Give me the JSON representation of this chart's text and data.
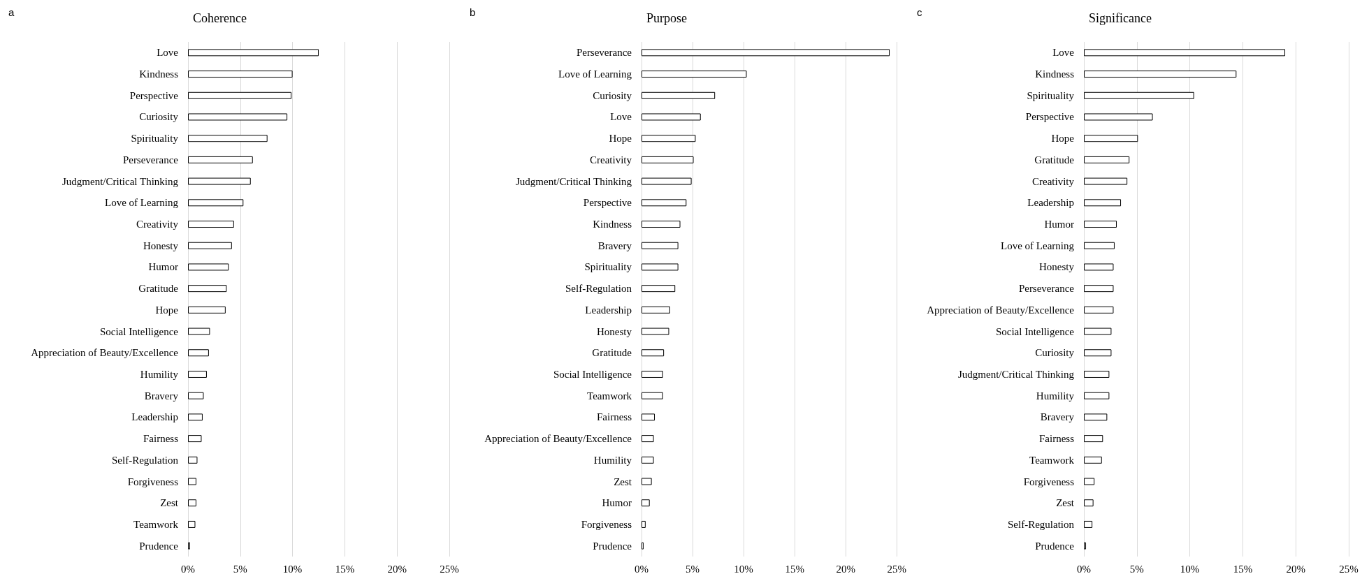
{
  "chart_data": [
    {
      "type": "bar",
      "orientation": "horizontal",
      "title": "Coherence",
      "annotations": [
        "a"
      ],
      "grid": "x",
      "color": "#ffffff",
      "categories": [
        "Love",
        "Kindness",
        "Perspective",
        "Curiosity",
        "Spirituality",
        "Perseverance",
        "Judgment/Critical Thinking",
        "Love of Learning",
        "Creativity",
        "Honesty",
        "Humor",
        "Gratitude",
        "Hope",
        "Social Intelligence",
        "Appreciation of Beauty/Excellence",
        "Humility",
        "Bravery",
        "Leadership",
        "Fairness",
        "Self-Regulation",
        "Forgiveness",
        "Zest",
        "Teamwork",
        "Prudence"
      ],
      "values": [
        12.5,
        10.0,
        9.9,
        9.5,
        7.6,
        6.2,
        6.0,
        5.3,
        4.4,
        4.2,
        3.9,
        3.7,
        3.6,
        2.1,
        2.0,
        1.8,
        1.5,
        1.4,
        1.3,
        0.9,
        0.8,
        0.8,
        0.7,
        0.2
      ],
      "xlim": [
        0,
        25
      ],
      "xticks": [
        {
          "value": 0,
          "label": "0%"
        },
        {
          "value": 5,
          "label": "5%"
        },
        {
          "value": 10,
          "label": "10%"
        },
        {
          "value": 15,
          "label": "15%"
        },
        {
          "value": 20,
          "label": "20%"
        },
        {
          "value": 25,
          "label": "25%"
        }
      ]
    },
    {
      "type": "bar",
      "orientation": "horizontal",
      "title": "Purpose",
      "annotations": [
        "b"
      ],
      "grid": "x",
      "color": "#ffffff",
      "categories": [
        "Perseverance",
        "Love of Learning",
        "Curiosity",
        "Love",
        "Hope",
        "Creativity",
        "Judgment/Critical Thinking",
        "Perspective",
        "Kindness",
        "Bravery",
        "Spirituality",
        "Self-Regulation",
        "Leadership",
        "Honesty",
        "Gratitude",
        "Social Intelligence",
        "Teamwork",
        "Fairness",
        "Appreciation of Beauty/Excellence",
        "Humility",
        "Zest",
        "Humor",
        "Forgiveness",
        "Prudence"
      ],
      "values": [
        24.3,
        10.3,
        7.2,
        5.8,
        5.3,
        5.1,
        4.9,
        4.4,
        3.8,
        3.6,
        3.6,
        3.3,
        2.8,
        2.7,
        2.2,
        2.1,
        2.1,
        1.3,
        1.2,
        1.2,
        1.0,
        0.8,
        0.4,
        0.2
      ],
      "xlim": [
        0,
        25
      ],
      "xticks": [
        {
          "value": 0,
          "label": "0%"
        },
        {
          "value": 5,
          "label": "5%"
        },
        {
          "value": 10,
          "label": "10%"
        },
        {
          "value": 15,
          "label": "15%"
        },
        {
          "value": 20,
          "label": "20%"
        },
        {
          "value": 25,
          "label": "25%"
        }
      ]
    },
    {
      "type": "bar",
      "orientation": "horizontal",
      "title": "Significance",
      "annotations": [
        "c"
      ],
      "grid": "x",
      "color": "#ffffff",
      "categories": [
        "Love",
        "Kindness",
        "Spirituality",
        "Perspective",
        "Hope",
        "Gratitude",
        "Creativity",
        "Leadership",
        "Humor",
        "Love of Learning",
        "Honesty",
        "Perseverance",
        "Appreciation of Beauty/Excellence",
        "Social Intelligence",
        "Curiosity",
        "Judgment/Critical Thinking",
        "Humility",
        "Bravery",
        "Fairness",
        "Teamwork",
        "Forgiveness",
        "Zest",
        "Self-Regulation",
        "Prudence"
      ],
      "values": [
        19.0,
        14.4,
        10.4,
        6.5,
        5.1,
        4.3,
        4.1,
        3.5,
        3.1,
        2.9,
        2.8,
        2.8,
        2.8,
        2.6,
        2.6,
        2.4,
        2.4,
        2.2,
        1.8,
        1.7,
        1.0,
        0.9,
        0.8,
        0.2
      ],
      "xlim": [
        0,
        25
      ],
      "xticks": [
        {
          "value": 0,
          "label": "0%"
        },
        {
          "value": 5,
          "label": "5%"
        },
        {
          "value": 10,
          "label": "10%"
        },
        {
          "value": 15,
          "label": "15%"
        },
        {
          "value": 20,
          "label": "20%"
        },
        {
          "value": 25,
          "label": "25%"
        }
      ]
    }
  ]
}
